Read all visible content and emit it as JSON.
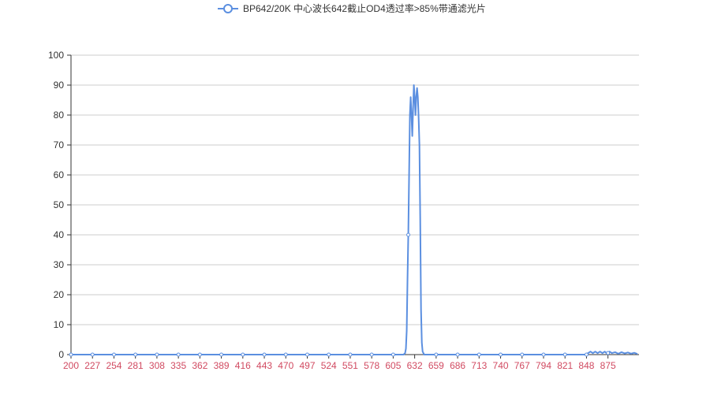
{
  "chart_data": {
    "type": "line",
    "title": "",
    "xlabel": "",
    "ylabel": "",
    "legend": {
      "position": "top-center"
    },
    "xlim": [
      200,
      914
    ],
    "ylim": [
      0,
      100
    ],
    "grid": true,
    "x_ticks": [
      200,
      227,
      254,
      281,
      308,
      335,
      362,
      389,
      416,
      443,
      470,
      497,
      524,
      551,
      578,
      605,
      632,
      659,
      686,
      713,
      740,
      767,
      794,
      821,
      848,
      875
    ],
    "y_ticks": [
      0,
      10,
      20,
      30,
      40,
      50,
      60,
      70,
      80,
      90,
      100
    ],
    "colors": {
      "series": "#5b8fe0",
      "x_tick_label": "#d14a61",
      "grid": "#cccccc",
      "axis": "#333333"
    },
    "series": [
      {
        "name": "BP642/20K 中心波长642截止OD4透过率>85%带通滤光片",
        "marker": "circle",
        "points": [
          [
            200,
            0
          ],
          [
            227,
            0
          ],
          [
            254,
            0
          ],
          [
            281,
            0
          ],
          [
            308,
            0
          ],
          [
            335,
            0
          ],
          [
            362,
            0
          ],
          [
            389,
            0
          ],
          [
            416,
            0
          ],
          [
            443,
            0
          ],
          [
            470,
            0
          ],
          [
            497,
            0
          ],
          [
            524,
            0
          ],
          [
            551,
            0
          ],
          [
            578,
            0
          ],
          [
            605,
            0
          ],
          [
            618,
            0
          ],
          [
            620,
            0.5
          ],
          [
            621,
            2
          ],
          [
            622,
            8
          ],
          [
            623,
            25
          ],
          [
            624,
            40
          ],
          [
            625,
            60
          ],
          [
            626,
            80
          ],
          [
            627,
            86
          ],
          [
            628,
            80
          ],
          [
            629,
            73
          ],
          [
            630,
            82
          ],
          [
            631,
            90
          ],
          [
            632,
            86
          ],
          [
            633,
            80
          ],
          [
            634,
            86
          ],
          [
            635,
            89
          ],
          [
            636,
            86
          ],
          [
            637,
            79
          ],
          [
            638,
            70
          ],
          [
            639,
            45
          ],
          [
            640,
            15
          ],
          [
            641,
            4
          ],
          [
            642,
            1
          ],
          [
            644,
            0
          ],
          [
            659,
            0
          ],
          [
            686,
            0
          ],
          [
            713,
            0
          ],
          [
            740,
            0
          ],
          [
            767,
            0
          ],
          [
            794,
            0
          ],
          [
            821,
            0
          ],
          [
            848,
            0
          ],
          [
            850,
            0.5
          ],
          [
            853,
            1
          ],
          [
            856,
            0.5
          ],
          [
            859,
            1
          ],
          [
            862,
            0.5
          ],
          [
            865,
            1
          ],
          [
            868,
            0.5
          ],
          [
            871,
            1
          ],
          [
            874,
            0.3
          ],
          [
            877,
            1
          ],
          [
            880,
            0.5
          ],
          [
            884,
            0.8
          ],
          [
            888,
            0.3
          ],
          [
            892,
            0.8
          ],
          [
            896,
            0.4
          ],
          [
            900,
            0.7
          ],
          [
            904,
            0.3
          ],
          [
            908,
            0.6
          ],
          [
            912,
            0.2
          ]
        ],
        "marker_x": [
          200,
          227,
          254,
          281,
          308,
          335,
          362,
          389,
          416,
          443,
          470,
          497,
          524,
          551,
          578,
          605,
          624,
          659,
          686,
          713,
          740,
          767,
          794,
          821,
          848,
          875
        ]
      }
    ]
  }
}
